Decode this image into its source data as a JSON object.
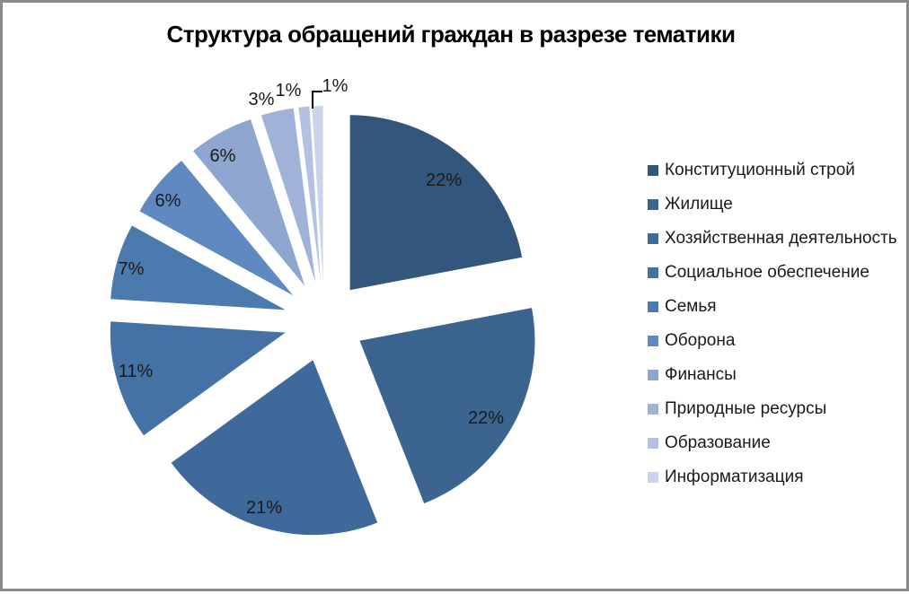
{
  "frame": {
    "border_color": "#8a8a8a",
    "background_color": "#ffffff"
  },
  "chart_data": {
    "type": "pie",
    "title": "Структура обращений граждан в разрезе тематики",
    "unit": "%",
    "exploded": true,
    "legend_position": "right",
    "data_labels": "percent",
    "slices": [
      {
        "label": "Конституционный строй",
        "value": 22,
        "percent_label": "22%",
        "color": "#33567C"
      },
      {
        "label": "Жилище",
        "value": 22,
        "percent_label": "22%",
        "color": "#3B648F"
      },
      {
        "label": "Хозяйственная деятельность",
        "value": 21,
        "percent_label": "21%",
        "color": "#40699B"
      },
      {
        "label": "Социальное обеспечение",
        "value": 11,
        "percent_label": "11%",
        "color": "#4572A5"
      },
      {
        "label": "Семья",
        "value": 7,
        "percent_label": "7%",
        "color": "#4B7AAF"
      },
      {
        "label": "Оборона",
        "value": 6,
        "percent_label": "6%",
        "color": "#6189C1"
      },
      {
        "label": "Финансы",
        "value": 6,
        "percent_label": "6%",
        "color": "#8EA5CF"
      },
      {
        "label": "Природные ресурсы",
        "value": 3,
        "percent_label": "3%",
        "color": "#A1B2D8"
      },
      {
        "label": "Образование",
        "value": 1,
        "percent_label": "1%",
        "color": "#B5C1E0"
      },
      {
        "label": "Информатизация",
        "value": 1,
        "percent_label": "1%",
        "color": "#CAD3EA"
      }
    ]
  }
}
